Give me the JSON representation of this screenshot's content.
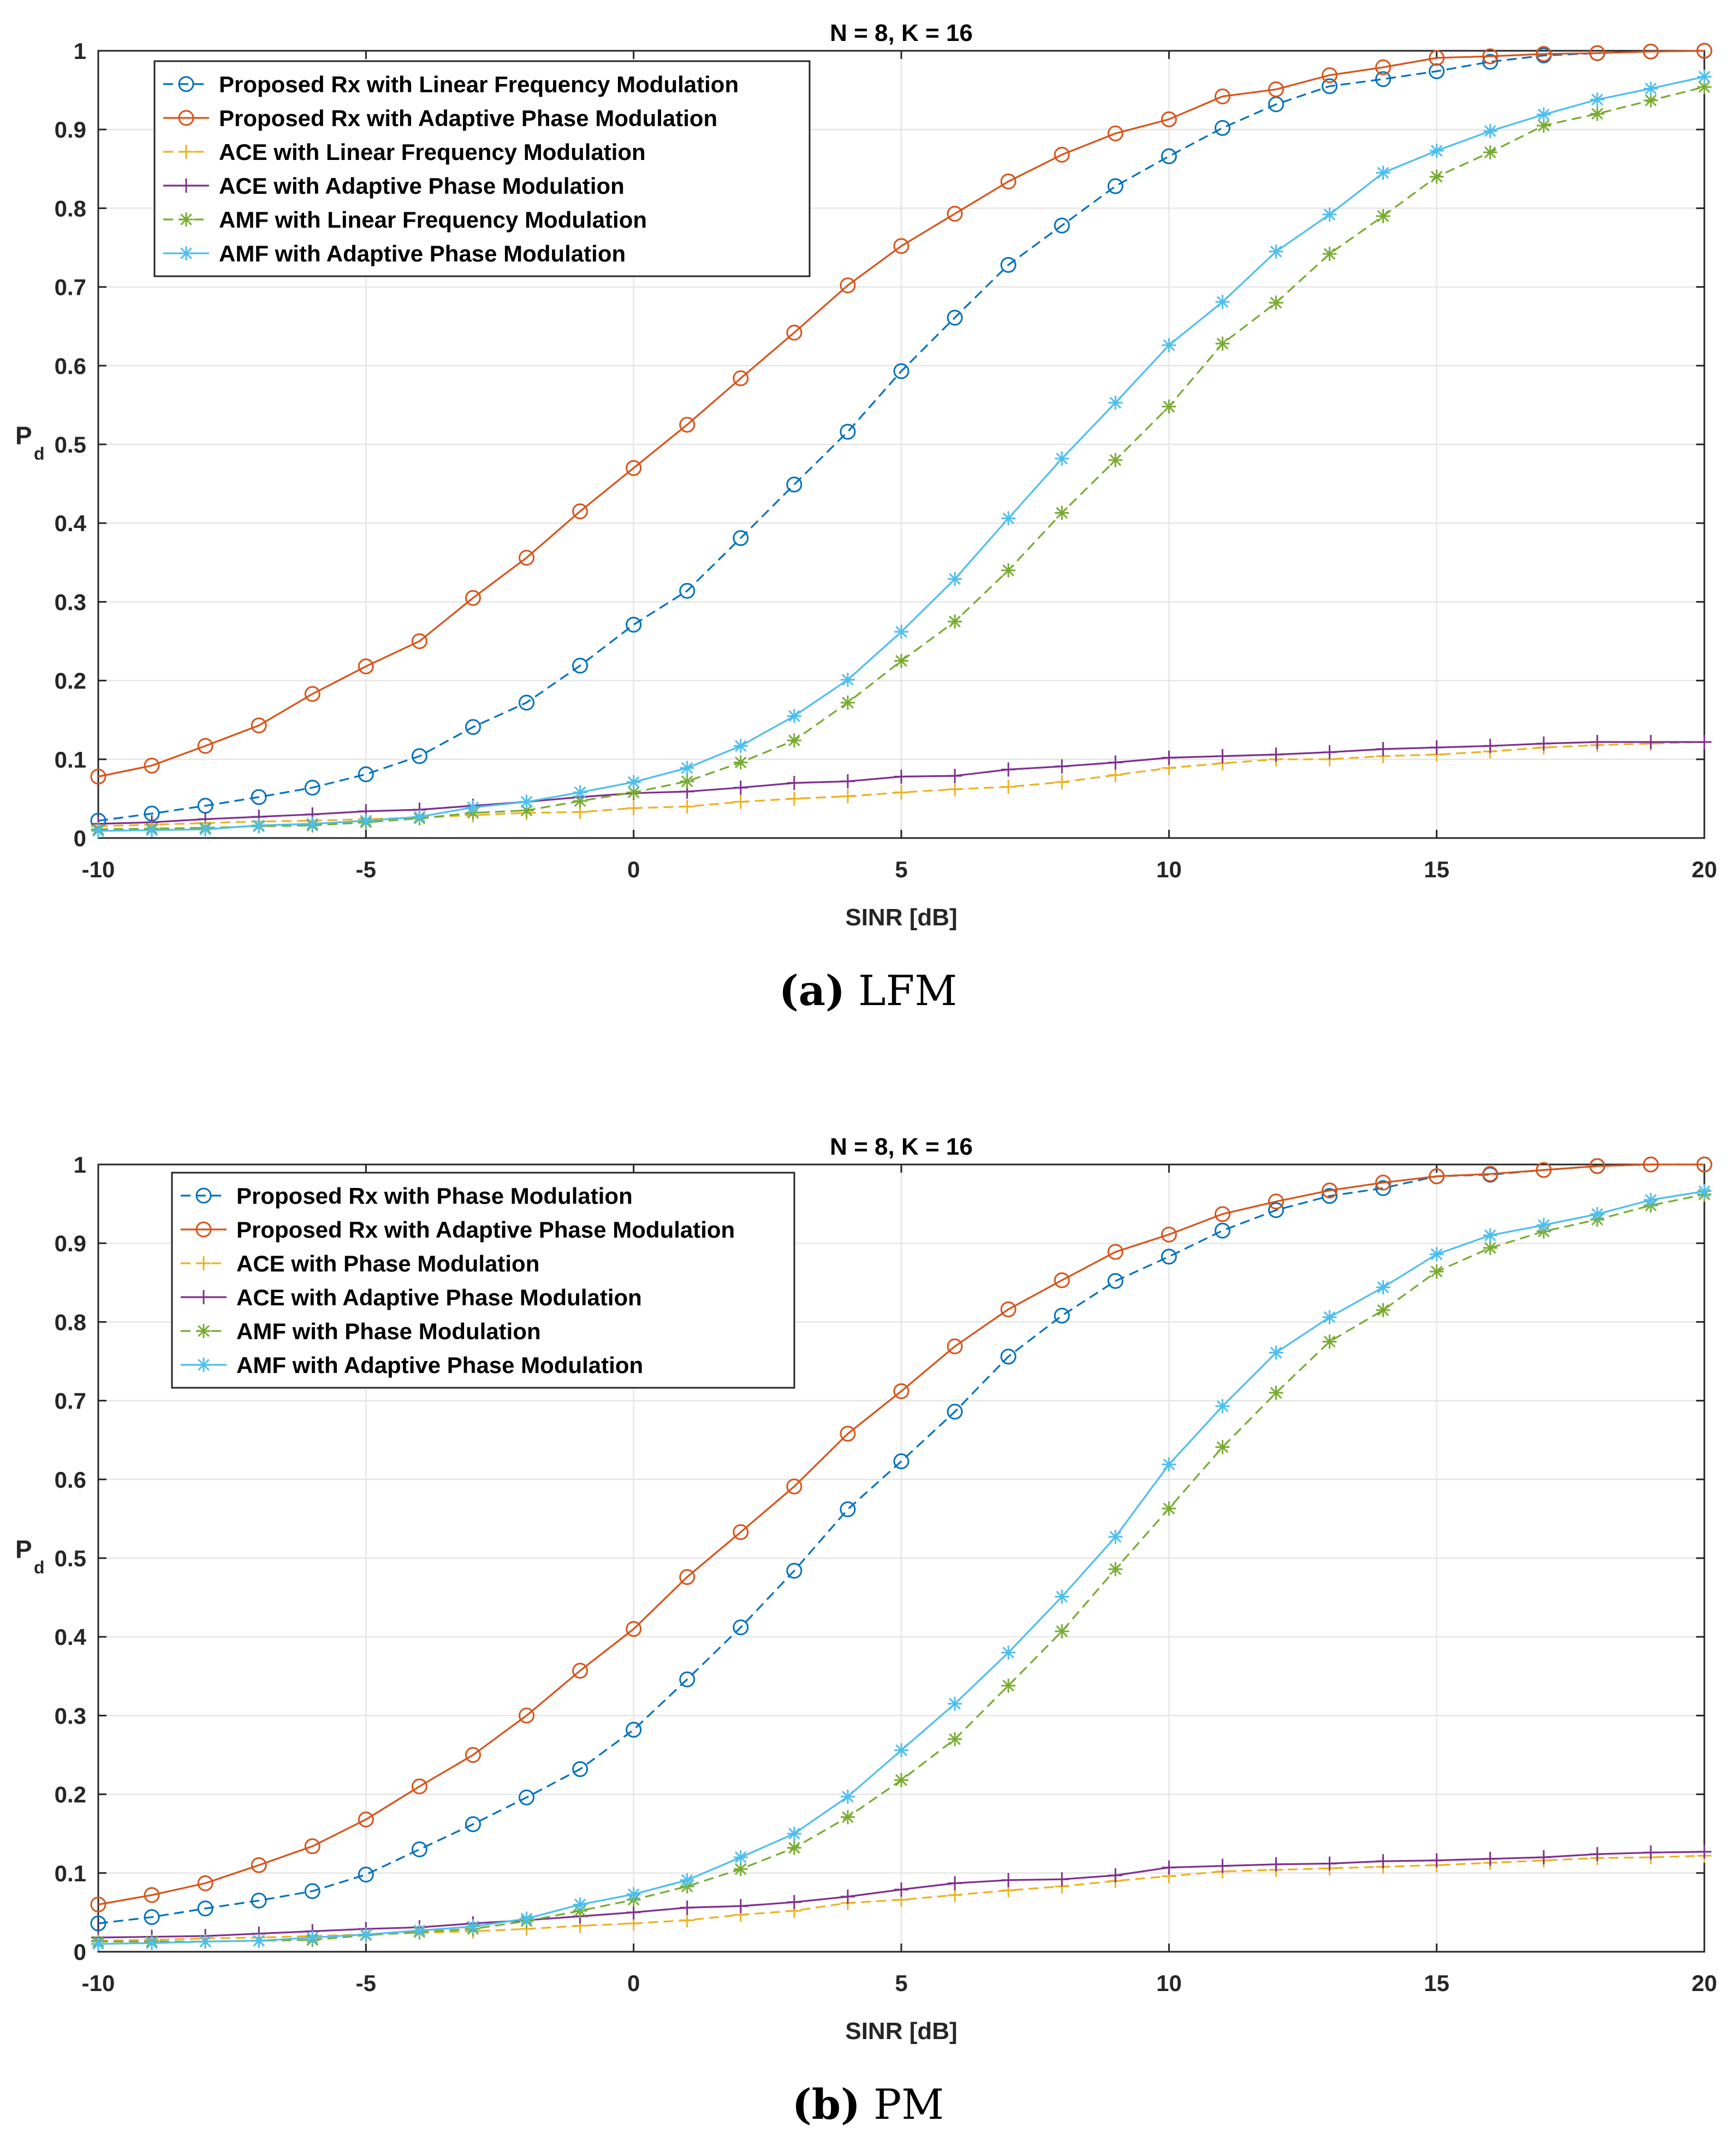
{
  "colors": {
    "blue": "#0072BD",
    "orange": "#D95319",
    "yellow": "#EDB120",
    "purple": "#7E2F8E",
    "green": "#77AC30",
    "cyan": "#4DBEEE"
  },
  "panels": [
    {
      "caption_label": "(a)",
      "caption_text": "LFM"
    },
    {
      "caption_label": "(b)",
      "caption_text": "PM"
    }
  ],
  "chart_data": [
    {
      "type": "line",
      "title": "N = 8, K = 16",
      "xlabel": "SINR [dB]",
      "ylabel_main": "P",
      "ylabel_sub": "d",
      "xlim": [
        -10,
        20
      ],
      "ylim": [
        0,
        1
      ],
      "grid": true,
      "legend_position": "top-left",
      "xticks": [
        "-10",
        "-5",
        "0",
        "5",
        "10",
        "15",
        "20"
      ],
      "yticks": [
        "0",
        "0.1",
        "0.2",
        "0.3",
        "0.4",
        "0.5",
        "0.6",
        "0.7",
        "0.8",
        "0.9",
        "1"
      ],
      "x": [
        -10,
        -9,
        -8,
        -7,
        -6,
        -5,
        -4,
        -3,
        -2,
        -1,
        0,
        1,
        2,
        3,
        4,
        5,
        6,
        7,
        8,
        9,
        10,
        11,
        12,
        13,
        14,
        15,
        16,
        17,
        18,
        19,
        20
      ],
      "series": [
        {
          "name": "Proposed Rx with Linear Frequency Modulation",
          "color": "blue",
          "dash": true,
          "marker": "circle",
          "values": [
            0.022,
            0.031,
            0.041,
            0.052,
            0.064,
            0.081,
            0.104,
            0.141,
            0.172,
            0.219,
            0.271,
            0.314,
            0.381,
            0.449,
            0.516,
            0.593,
            0.661,
            0.728,
            0.778,
            0.828,
            0.866,
            0.902,
            0.932,
            0.955,
            0.964,
            0.974,
            0.986,
            0.994,
            0.997,
            0.999,
            1.0
          ]
        },
        {
          "name": "Proposed Rx with Adaptive Phase Modulation",
          "color": "orange",
          "dash": false,
          "marker": "circle",
          "values": [
            0.078,
            0.092,
            0.117,
            0.143,
            0.183,
            0.218,
            0.25,
            0.305,
            0.356,
            0.415,
            0.47,
            0.525,
            0.584,
            0.642,
            0.702,
            0.752,
            0.793,
            0.834,
            0.868,
            0.895,
            0.913,
            0.942,
            0.951,
            0.969,
            0.979,
            0.991,
            0.993,
            0.996,
            0.997,
            0.999,
            1.0
          ]
        },
        {
          "name": "ACE with Linear Frequency Modulation",
          "color": "yellow",
          "dash": true,
          "marker": "plus",
          "values": [
            0.015,
            0.017,
            0.019,
            0.021,
            0.022,
            0.024,
            0.026,
            0.029,
            0.032,
            0.033,
            0.038,
            0.04,
            0.046,
            0.05,
            0.053,
            0.058,
            0.062,
            0.065,
            0.071,
            0.08,
            0.089,
            0.095,
            0.1,
            0.1,
            0.104,
            0.106,
            0.11,
            0.115,
            0.118,
            0.12,
            0.122
          ]
        },
        {
          "name": "ACE with Adaptive Phase Modulation",
          "color": "purple",
          "dash": false,
          "marker": "plus",
          "values": [
            0.018,
            0.02,
            0.024,
            0.027,
            0.03,
            0.034,
            0.036,
            0.041,
            0.046,
            0.052,
            0.057,
            0.059,
            0.064,
            0.07,
            0.072,
            0.078,
            0.079,
            0.087,
            0.091,
            0.096,
            0.102,
            0.104,
            0.106,
            0.109,
            0.113,
            0.115,
            0.117,
            0.12,
            0.122,
            0.122,
            0.122
          ]
        },
        {
          "name": "AMF with Linear Frequency Modulation",
          "color": "green",
          "dash": true,
          "marker": "asterisk",
          "values": [
            0.011,
            0.012,
            0.013,
            0.015,
            0.016,
            0.02,
            0.025,
            0.032,
            0.035,
            0.047,
            0.058,
            0.072,
            0.096,
            0.124,
            0.172,
            0.225,
            0.275,
            0.34,
            0.413,
            0.48,
            0.548,
            0.628,
            0.68,
            0.742,
            0.79,
            0.84,
            0.871,
            0.905,
            0.92,
            0.937,
            0.954
          ]
        },
        {
          "name": "AMF with Adaptive Phase Modulation",
          "color": "cyan",
          "dash": false,
          "marker": "asterisk",
          "values": [
            0.009,
            0.01,
            0.011,
            0.016,
            0.018,
            0.022,
            0.027,
            0.039,
            0.046,
            0.058,
            0.071,
            0.089,
            0.117,
            0.155,
            0.201,
            0.262,
            0.329,
            0.406,
            0.482,
            0.553,
            0.626,
            0.681,
            0.745,
            0.792,
            0.845,
            0.873,
            0.898,
            0.919,
            0.938,
            0.952,
            0.967
          ]
        }
      ]
    },
    {
      "type": "line",
      "title": "N = 8, K = 16",
      "xlabel": "SINR [dB]",
      "ylabel_main": "P",
      "ylabel_sub": "d",
      "xlim": [
        -10,
        20
      ],
      "ylim": [
        0,
        1
      ],
      "grid": true,
      "legend_position": "top-left",
      "xticks": [
        "-10",
        "-5",
        "0",
        "5",
        "10",
        "15",
        "20"
      ],
      "yticks": [
        "0",
        "0.1",
        "0.2",
        "0.3",
        "0.4",
        "0.5",
        "0.6",
        "0.7",
        "0.8",
        "0.9",
        "1"
      ],
      "x": [
        -10,
        -9,
        -8,
        -7,
        -6,
        -5,
        -4,
        -3,
        -2,
        -1,
        0,
        1,
        2,
        3,
        4,
        5,
        6,
        7,
        8,
        9,
        10,
        11,
        12,
        13,
        14,
        15,
        16,
        17,
        18,
        19,
        20
      ],
      "series": [
        {
          "name": "Proposed Rx with Phase Modulation",
          "color": "blue",
          "dash": true,
          "marker": "circle",
          "values": [
            0.036,
            0.044,
            0.055,
            0.065,
            0.077,
            0.098,
            0.13,
            0.162,
            0.196,
            0.232,
            0.282,
            0.346,
            0.412,
            0.484,
            0.562,
            0.623,
            0.686,
            0.756,
            0.808,
            0.852,
            0.883,
            0.916,
            0.942,
            0.96,
            0.97,
            0.985,
            0.987,
            0.993,
            0.998,
            1.0,
            1.0
          ]
        },
        {
          "name": "Proposed Rx with Adaptive Phase Modulation",
          "color": "orange",
          "dash": false,
          "marker": "circle",
          "values": [
            0.06,
            0.072,
            0.087,
            0.11,
            0.134,
            0.168,
            0.21,
            0.25,
            0.3,
            0.357,
            0.41,
            0.476,
            0.533,
            0.591,
            0.658,
            0.712,
            0.769,
            0.816,
            0.853,
            0.889,
            0.911,
            0.937,
            0.953,
            0.967,
            0.977,
            0.985,
            0.988,
            0.993,
            0.998,
            1.0,
            1.0
          ]
        },
        {
          "name": "ACE with Phase Modulation",
          "color": "yellow",
          "dash": true,
          "marker": "plus",
          "values": [
            0.014,
            0.015,
            0.017,
            0.018,
            0.02,
            0.022,
            0.024,
            0.026,
            0.029,
            0.033,
            0.036,
            0.04,
            0.047,
            0.052,
            0.062,
            0.066,
            0.072,
            0.078,
            0.083,
            0.09,
            0.096,
            0.102,
            0.104,
            0.106,
            0.108,
            0.11,
            0.113,
            0.116,
            0.119,
            0.12,
            0.122
          ]
        },
        {
          "name": "ACE with Adaptive Phase Modulation",
          "color": "purple",
          "dash": false,
          "marker": "plus",
          "values": [
            0.018,
            0.019,
            0.02,
            0.023,
            0.026,
            0.029,
            0.031,
            0.036,
            0.04,
            0.045,
            0.05,
            0.056,
            0.058,
            0.063,
            0.07,
            0.079,
            0.087,
            0.091,
            0.092,
            0.097,
            0.107,
            0.109,
            0.111,
            0.112,
            0.115,
            0.116,
            0.118,
            0.12,
            0.124,
            0.126,
            0.127
          ]
        },
        {
          "name": "AMF with Phase Modulation",
          "color": "green",
          "dash": true,
          "marker": "asterisk",
          "values": [
            0.013,
            0.013,
            0.013,
            0.014,
            0.015,
            0.021,
            0.025,
            0.029,
            0.039,
            0.052,
            0.066,
            0.083,
            0.105,
            0.132,
            0.171,
            0.218,
            0.27,
            0.338,
            0.407,
            0.486,
            0.563,
            0.641,
            0.71,
            0.775,
            0.815,
            0.864,
            0.894,
            0.915,
            0.93,
            0.948,
            0.962
          ]
        },
        {
          "name": "AMF with Adaptive Phase Modulation",
          "color": "cyan",
          "dash": false,
          "marker": "asterisk",
          "values": [
            0.01,
            0.011,
            0.013,
            0.014,
            0.018,
            0.022,
            0.027,
            0.032,
            0.042,
            0.06,
            0.073,
            0.091,
            0.12,
            0.15,
            0.197,
            0.256,
            0.315,
            0.38,
            0.451,
            0.527,
            0.619,
            0.693,
            0.761,
            0.806,
            0.844,
            0.886,
            0.91,
            0.923,
            0.937,
            0.955,
            0.966
          ]
        }
      ]
    }
  ]
}
